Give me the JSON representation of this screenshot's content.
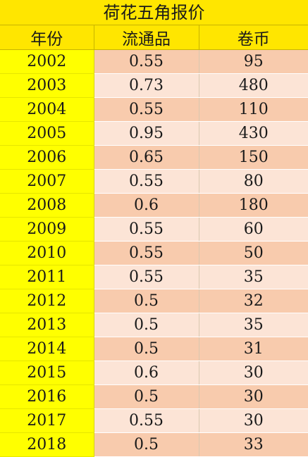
{
  "title": "荷花五角报价",
  "columns": [
    "年份",
    "流通品",
    "卷币"
  ],
  "rows": [
    {
      "year": "2002",
      "circulated": "0.55",
      "roll": "95"
    },
    {
      "year": "2003",
      "circulated": "0.73",
      "roll": "480"
    },
    {
      "year": "2004",
      "circulated": "0.55",
      "roll": "110"
    },
    {
      "year": "2005",
      "circulated": "0.95",
      "roll": "430"
    },
    {
      "year": "2006",
      "circulated": "0.65",
      "roll": "150"
    },
    {
      "year": "2007",
      "circulated": "0.55",
      "roll": "80"
    },
    {
      "year": "2008",
      "circulated": "0.6",
      "roll": "180"
    },
    {
      "year": "2009",
      "circulated": "0.55",
      "roll": "60"
    },
    {
      "year": "2010",
      "circulated": "0.55",
      "roll": "50"
    },
    {
      "year": "2011",
      "circulated": "0.55",
      "roll": "35"
    },
    {
      "year": "2012",
      "circulated": "0.5",
      "roll": "32"
    },
    {
      "year": "2013",
      "circulated": "0.5",
      "roll": "35"
    },
    {
      "year": "2014",
      "circulated": "0.5",
      "roll": "31"
    },
    {
      "year": "2015",
      "circulated": "0.6",
      "roll": "30"
    },
    {
      "year": "2016",
      "circulated": "0.5",
      "roll": "30"
    },
    {
      "year": "2017",
      "circulated": "0.55",
      "roll": "30"
    },
    {
      "year": "2018",
      "circulated": "0.5",
      "roll": "33"
    }
  ],
  "colors": {
    "title_bg": "#ffe600",
    "year_bg": "#ffff00",
    "row_dark": "#f8cbad",
    "row_light": "#fce4d6"
  }
}
